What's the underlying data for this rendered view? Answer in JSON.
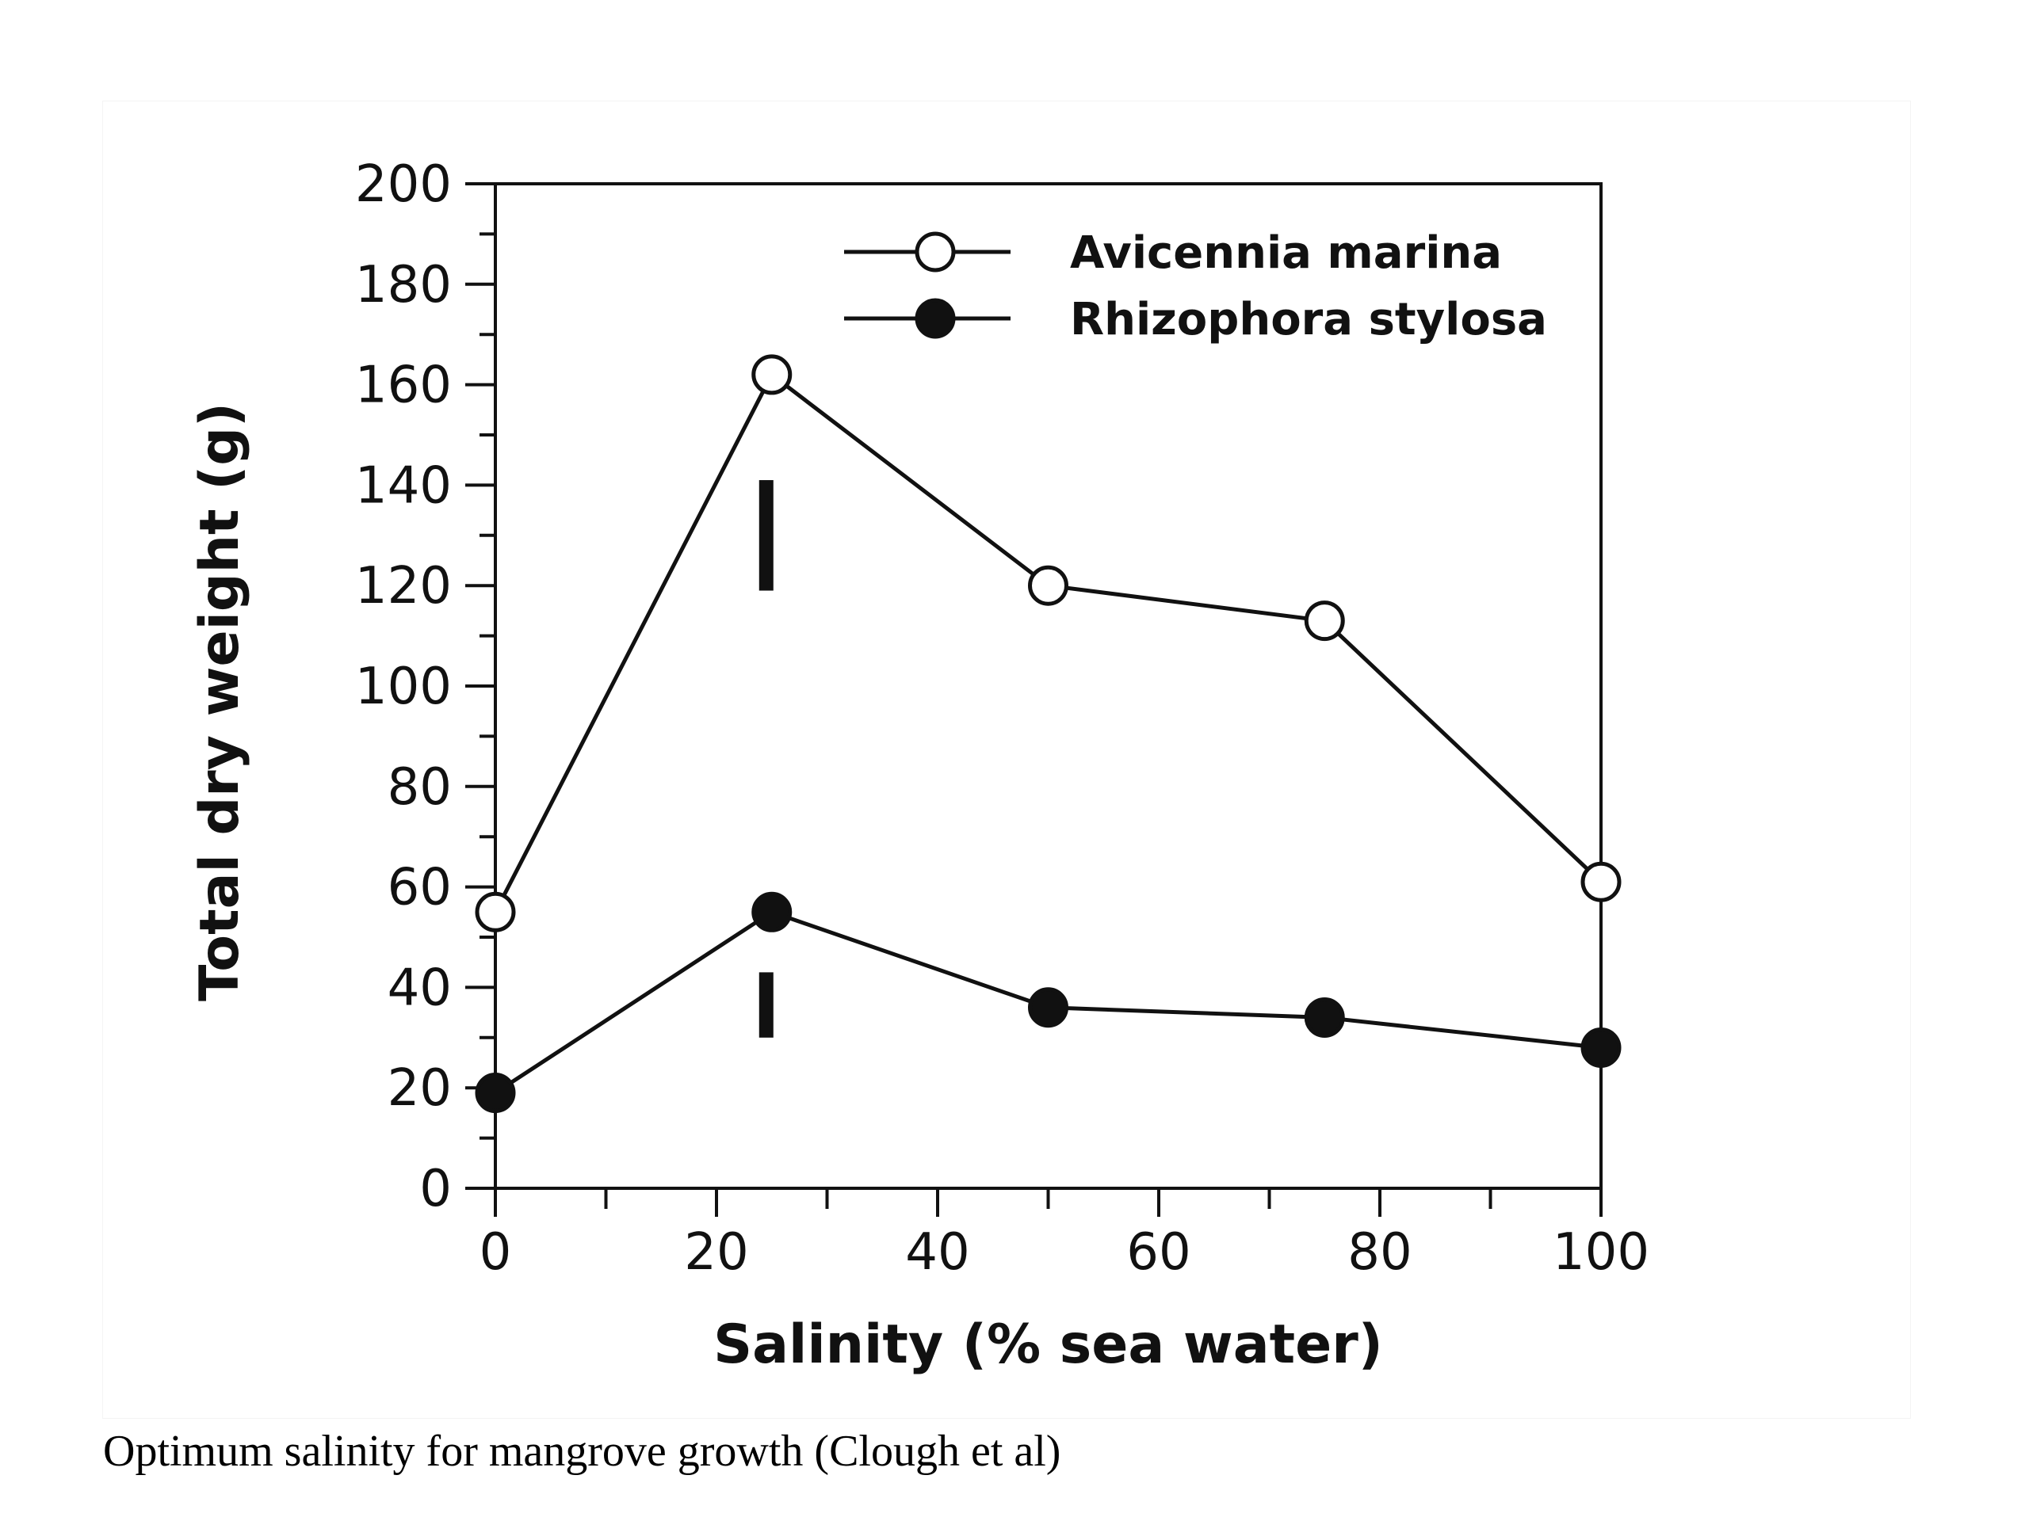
{
  "caption": "Optimum salinity for mangrove growth (Clough et al)",
  "chart_data": {
    "type": "line",
    "title": "",
    "xlabel": "Salinity  (% sea water)",
    "ylabel": "Total dry weight (g)",
    "xlim": [
      0,
      100
    ],
    "ylim": [
      0,
      200
    ],
    "x_ticks": [
      0,
      20,
      40,
      60,
      80,
      100
    ],
    "x_minor_step": 10,
    "y_ticks": [
      0,
      20,
      40,
      60,
      80,
      100,
      120,
      140,
      160,
      180,
      200
    ],
    "y_minor_step": 10,
    "grid": false,
    "legend_position": "top-right",
    "series": [
      {
        "name": "Avicennia marina",
        "marker": "open-circle",
        "x": [
          0,
          25,
          50,
          75,
          100
        ],
        "y": [
          55,
          162,
          120,
          113,
          61
        ]
      },
      {
        "name": "Rhizophora stylosa",
        "marker": "filled-circle",
        "x": [
          0,
          25,
          50,
          75,
          100
        ],
        "y": [
          19,
          55,
          36,
          34,
          28
        ]
      }
    ],
    "error_bars": [
      {
        "x": 24.5,
        "y_low": 119,
        "y_high": 141
      },
      {
        "x": 24.5,
        "y_low": 30,
        "y_high": 43
      }
    ],
    "colors": {
      "ink": "#111111",
      "open_fill": "#ffffff"
    }
  }
}
